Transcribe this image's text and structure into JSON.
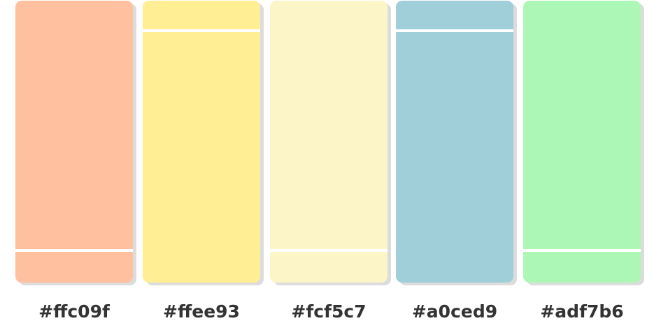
{
  "swatches": [
    {
      "color": "#ffc09f",
      "label": "#ffc09f",
      "divider": "bottom"
    },
    {
      "color": "#ffee93",
      "label": "#ffee93",
      "divider": "top"
    },
    {
      "color": "#fcf5c7",
      "label": "#fcf5c7",
      "divider": "bottom"
    },
    {
      "color": "#a0ced9",
      "label": "#a0ced9",
      "divider": "top"
    },
    {
      "color": "#adf7b6",
      "label": "#adf7b6",
      "divider": "bottom"
    }
  ]
}
